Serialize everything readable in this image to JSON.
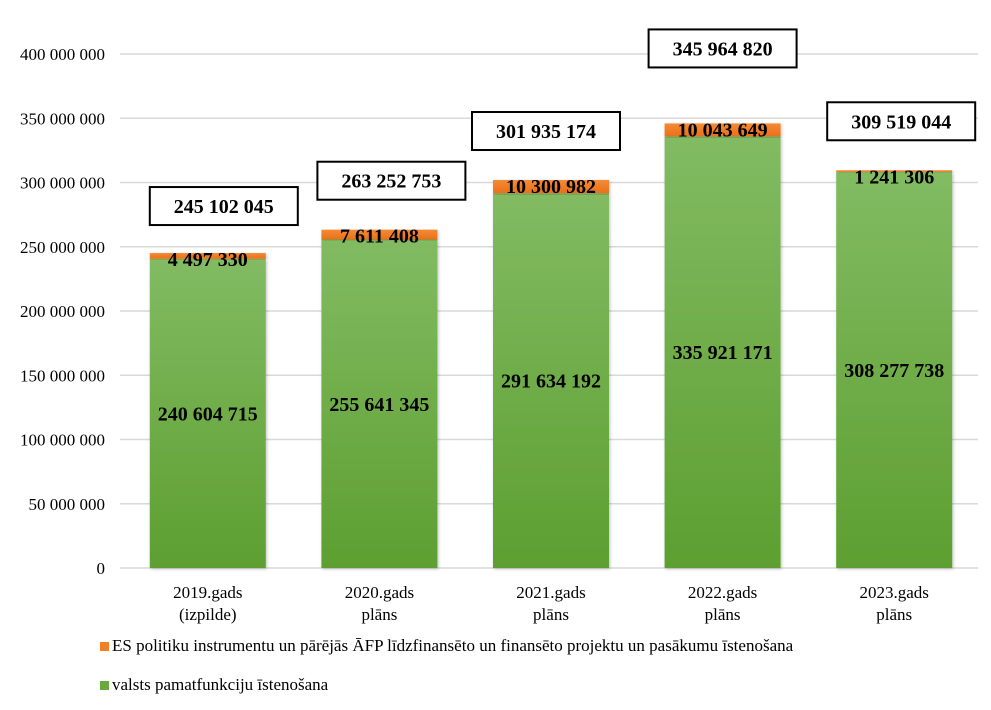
{
  "chart_data": {
    "type": "bar",
    "stacked": true,
    "title": "",
    "xlabel": "",
    "ylabel": "",
    "ylim": [
      0,
      400000000
    ],
    "yticks": [
      0,
      50000000,
      100000000,
      150000000,
      200000000,
      250000000,
      300000000,
      350000000,
      400000000
    ],
    "ytick_labels": [
      "0",
      "50 000 000",
      "100 000 000",
      "150 000 000",
      "200 000 000",
      "250 000 000",
      "300 000 000",
      "350 000 000",
      "400 000 000"
    ],
    "grid": true,
    "categories": [
      [
        "2019.gads",
        "(izpilde)"
      ],
      [
        "2020.gads",
        "plāns"
      ],
      [
        "2021.gads",
        "plāns"
      ],
      [
        "2022.gads",
        "plāns"
      ],
      [
        "2023.gads",
        "plāns"
      ]
    ],
    "series": [
      {
        "name": "valsts pamatfunkciju īstenošana",
        "color": "#6aaa3c",
        "values": [
          240604715,
          255641345,
          291634192,
          335921171,
          308277738
        ],
        "labels": [
          "240 604 715",
          "255 641 345",
          "291 634 192",
          "335 921 171",
          "308 277 738"
        ]
      },
      {
        "name": "ES politiku instrumentu un pārējās ĀFP līdzfinansēto un finansēto projektu un pasākumu īstenošana",
        "color": "#f07f27",
        "values": [
          4497330,
          7611408,
          10300982,
          10043649,
          1241306
        ],
        "labels": [
          "4 497 330",
          "7 611 408",
          "10 300 982",
          "10 043 649",
          "1 241 306"
        ]
      }
    ],
    "totals": [
      245102045,
      263252753,
      301935174,
      345964820,
      309519044
    ],
    "total_labels": [
      "245 102 045",
      "263 252 753",
      "301 935 174",
      "345 964 820",
      "309 519 044"
    ],
    "legend": {
      "position": "bottom-left",
      "order": [
        1,
        0
      ]
    }
  }
}
